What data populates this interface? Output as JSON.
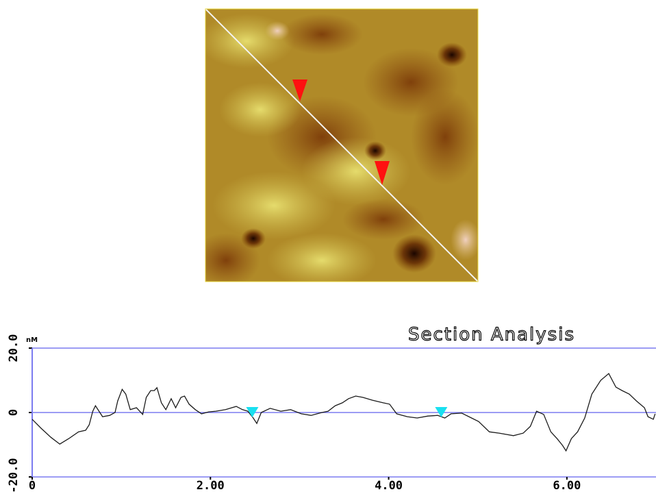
{
  "chart_data": {
    "type": "line",
    "title": "Section Analysis",
    "y_unit": "nM",
    "x": [
      0.0,
      0.1,
      0.21,
      0.31,
      0.41,
      0.52,
      0.6,
      0.64,
      0.68,
      0.71,
      0.75,
      0.79,
      0.87,
      0.93,
      0.96,
      1.01,
      1.05,
      1.1,
      1.17,
      1.24,
      1.28,
      1.33,
      1.37,
      1.4,
      1.45,
      1.5,
      1.56,
      1.61,
      1.67,
      1.71,
      1.76,
      1.83,
      1.9,
      1.98,
      2.06,
      2.17,
      2.29,
      2.36,
      2.42,
      2.48,
      2.52,
      2.57,
      2.67,
      2.79,
      2.9,
      3.02,
      3.13,
      3.25,
      3.32,
      3.4,
      3.48,
      3.55,
      3.63,
      3.71,
      3.82,
      3.94,
      4.01,
      4.09,
      4.21,
      4.32,
      4.44,
      4.55,
      4.63,
      4.7,
      4.82,
      4.93,
      5.01,
      5.13,
      5.24,
      5.4,
      5.51,
      5.59,
      5.66,
      5.74,
      5.82,
      5.89,
      5.95,
      5.99,
      6.05,
      6.12,
      6.2,
      6.28,
      6.38,
      6.47,
      6.55,
      6.62,
      6.7,
      6.78,
      6.87,
      6.91,
      6.97,
      6.99
    ],
    "series": [
      {
        "color": "#1a1a1a",
        "values": [
          -2.1,
          -4.9,
          -7.7,
          -9.8,
          -8.1,
          -6.0,
          -5.5,
          -3.8,
          0.4,
          2.1,
          0.4,
          -1.3,
          -0.9,
          0,
          3.6,
          7.2,
          5.7,
          0.9,
          1.5,
          -0.6,
          4.7,
          6.8,
          6.8,
          7.7,
          3.0,
          0.9,
          4.3,
          1.5,
          4.7,
          5.1,
          2.6,
          0.9,
          -0.4,
          0.2,
          0.4,
          0.9,
          1.9,
          0.9,
          0.4,
          -1.7,
          -3.4,
          0,
          1.3,
          0.4,
          0.9,
          -0.4,
          -0.9,
          0,
          0.4,
          2.1,
          3.0,
          4.3,
          5.1,
          4.7,
          3.8,
          3.0,
          2.6,
          -0.4,
          -1.3,
          -1.7,
          -1.1,
          -0.9,
          -1.7,
          -0.4,
          -0.2,
          -1.7,
          -2.8,
          -6.0,
          -6.4,
          -7.2,
          -6.4,
          -4.3,
          0.4,
          -0.6,
          -6.0,
          -8.1,
          -10.2,
          -11.9,
          -8.1,
          -6.0,
          -1.7,
          5.7,
          10.0,
          12.1,
          7.9,
          6.8,
          5.7,
          3.6,
          1.5,
          -1.3,
          -2.1,
          -0.4
        ]
      }
    ],
    "cursors": {
      "x": [
        2.47,
        4.59
      ],
      "color": "#19e0f0"
    },
    "xlim": [
      0,
      7
    ],
    "xticks": [
      {
        "value": 0,
        "label": "0"
      },
      {
        "value": 2,
        "label": "2.00"
      },
      {
        "value": 4,
        "label": "4.00"
      },
      {
        "value": 6,
        "label": "6.00"
      }
    ],
    "ylim": [
      -20,
      20
    ],
    "yticks": [
      {
        "value": -20,
        "label": "-20.0"
      },
      0,
      {
        "value": 20,
        "label": "20.0"
      }
    ],
    "grid": true,
    "grid_color": "#7b7bf0"
  }
}
